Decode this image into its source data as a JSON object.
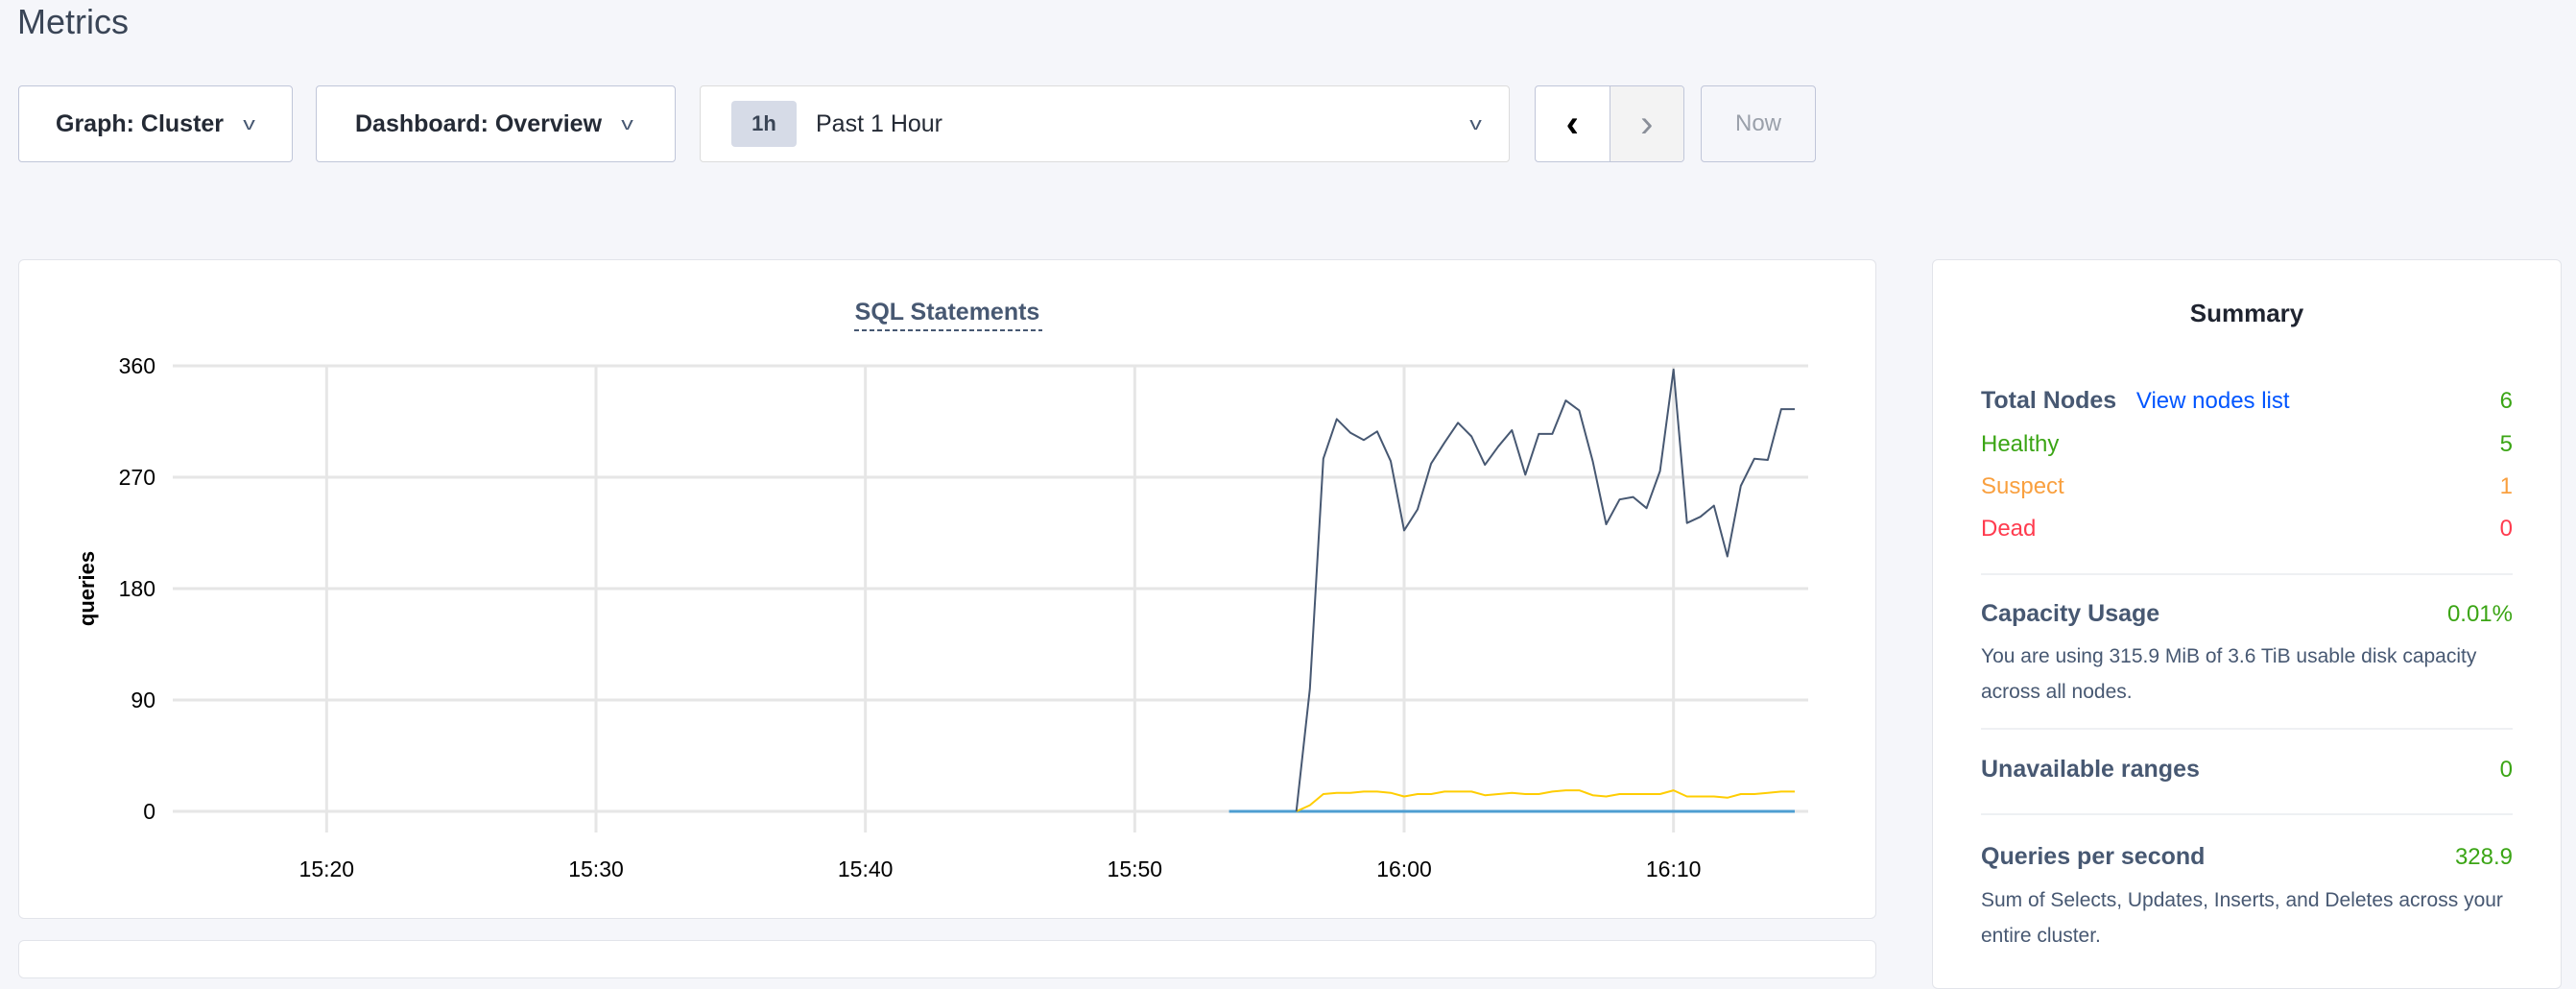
{
  "page_title": "Metrics",
  "toolbar": {
    "graph_label": "Graph: Cluster",
    "dashboard_label": "Dashboard: Overview",
    "time_badge": "1h",
    "time_value": "Past 1 Hour",
    "prev_icon": "chevron-left-icon",
    "next_icon": "chevron-right-icon",
    "now_label": "Now"
  },
  "chart_data": {
    "type": "line",
    "title": "SQL Statements",
    "ylabel": "queries",
    "xlabel": "",
    "xlim": [
      "15:15:00",
      "16:15:00"
    ],
    "ylim": [
      0,
      360
    ],
    "yticks": [
      0,
      90,
      180,
      270,
      360
    ],
    "xticks": [
      "15:20",
      "15:30",
      "15:40",
      "15:50",
      "16:00",
      "16:10"
    ],
    "grid": true,
    "colors": [
      "#475872",
      "#ffcd02",
      "#4e9ed1"
    ],
    "series": [
      {
        "color": "#475872",
        "x": [
          "15:56:00",
          "15:56:30",
          "15:57:00",
          "15:57:30",
          "15:58:00",
          "15:58:30",
          "15:59:00",
          "15:59:30",
          "16:00:00",
          "16:00:30",
          "16:01:00",
          "16:01:30",
          "16:02:00",
          "16:02:30",
          "16:03:00",
          "16:03:30",
          "16:04:00",
          "16:04:30",
          "16:05:00",
          "16:05:30",
          "16:06:00",
          "16:06:30",
          "16:07:00",
          "16:07:30",
          "16:08:00",
          "16:08:30",
          "16:09:00",
          "16:09:30",
          "16:10:00",
          "16:10:30",
          "16:11:00",
          "16:11:30",
          "16:12:00",
          "16:12:30",
          "16:13:00",
          "16:13:30",
          "16:14:00",
          "16:14:30"
        ],
        "values": [
          0,
          99,
          285,
          317,
          306,
          300,
          307,
          283,
          227,
          244,
          281,
          298,
          314,
          303,
          280,
          295,
          308,
          272,
          305,
          305,
          332,
          324,
          283,
          232,
          252,
          254,
          245,
          275,
          357,
          233,
          238,
          247,
          206,
          263,
          285,
          284,
          325,
          325
        ]
      },
      {
        "color": "#ffcd02",
        "x": [
          "15:56:00",
          "15:56:30",
          "15:57:00",
          "15:57:30",
          "15:58:00",
          "15:58:30",
          "15:59:00",
          "15:59:30",
          "16:00:00",
          "16:00:30",
          "16:01:00",
          "16:01:30",
          "16:02:00",
          "16:02:30",
          "16:03:00",
          "16:03:30",
          "16:04:00",
          "16:04:30",
          "16:05:00",
          "16:05:30",
          "16:06:00",
          "16:06:30",
          "16:07:00",
          "16:07:30",
          "16:08:00",
          "16:08:30",
          "16:09:00",
          "16:09:30",
          "16:10:00",
          "16:10:30",
          "16:11:00",
          "16:11:30",
          "16:12:00",
          "16:12:30",
          "16:13:00",
          "16:13:30",
          "16:14:00",
          "16:14:30"
        ],
        "values": [
          0,
          5,
          14,
          15,
          15,
          16,
          16,
          15,
          12,
          14,
          14,
          16,
          16,
          16,
          13,
          14,
          15,
          14,
          14,
          16,
          17,
          17,
          13,
          12,
          14,
          14,
          14,
          14,
          17,
          12,
          12,
          12,
          11,
          14,
          14,
          15,
          16,
          16
        ]
      },
      {
        "color": "#4e9ed1",
        "x": [
          "15:53:30",
          "16:14:30"
        ],
        "values": [
          0,
          0
        ]
      }
    ]
  },
  "summary": {
    "title": "Summary",
    "total_nodes_label": "Total Nodes",
    "view_nodes_link": "View nodes list",
    "total_nodes": "6",
    "healthy_label": "Healthy",
    "healthy": "5",
    "suspect_label": "Suspect",
    "suspect": "1",
    "dead_label": "Dead",
    "dead": "0",
    "capacity_label": "Capacity Usage",
    "capacity_value": "0.01%",
    "capacity_desc": "You are using 315.9 MiB of 3.6 TiB usable disk capacity across all nodes.",
    "unavailable_label": "Unavailable ranges",
    "unavailable_value": "0",
    "qps_label": "Queries per second",
    "qps_value": "328.9",
    "qps_desc": "Sum of Selects, Updates, Inserts, and Deletes across your entire cluster."
  }
}
